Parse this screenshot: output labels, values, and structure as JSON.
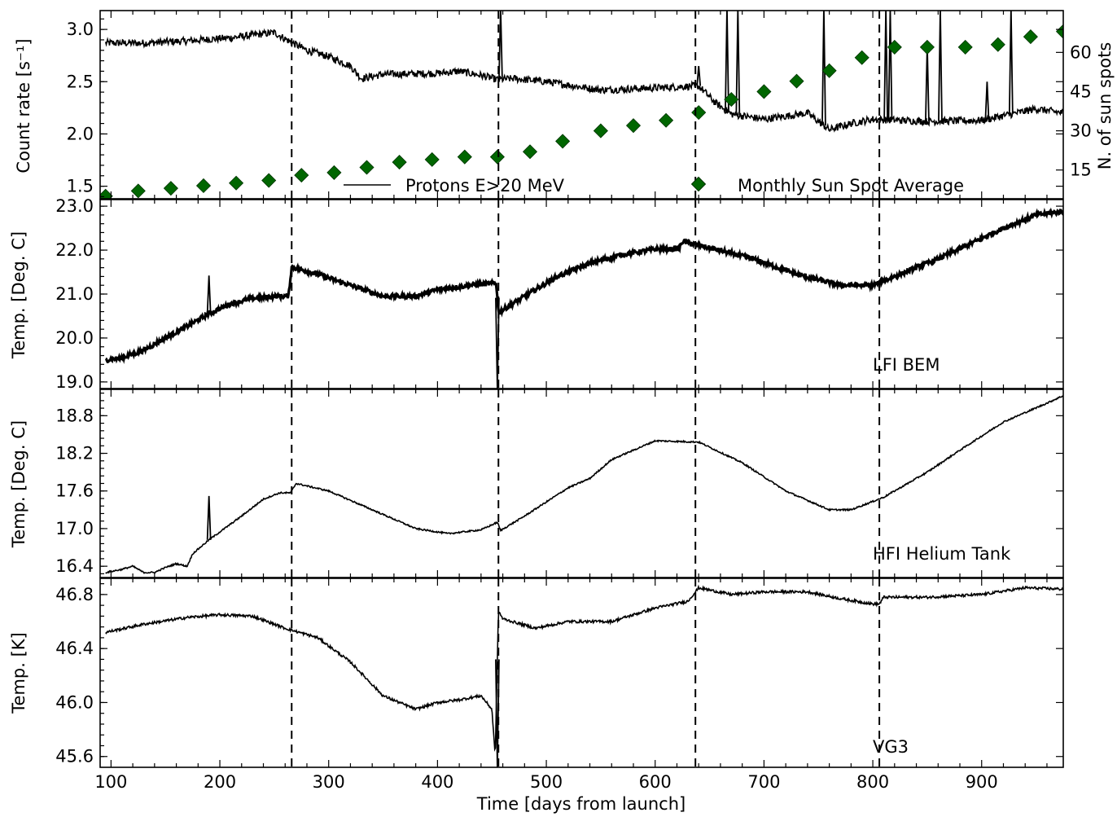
{
  "chart_data": [
    {
      "type": "line",
      "ylabel": "Count rate [s⁻¹]",
      "y2label": "N. of sun spots",
      "xlim": [
        90,
        975
      ],
      "ylim": [
        1.38,
        3.18
      ],
      "y2lim": [
        4,
        76
      ],
      "yticks": [
        "1.5",
        "2.0",
        "2.5",
        "3.0"
      ],
      "y2ticks": [
        "15",
        "30",
        "45",
        "60"
      ],
      "legend": {
        "position": "bottom",
        "entries": [
          "Protons E>20 MeV",
          "Monthly Sun Spot Average"
        ]
      },
      "series": [
        {
          "name": "Protons E>20 MeV",
          "style": "line",
          "noise": 0.035,
          "x": [
            95,
            130,
            170,
            210,
            250,
            265,
            280,
            300,
            320,
            330,
            350,
            400,
            420,
            440,
            455,
            470,
            500,
            550,
            600,
            640,
            655,
            670,
            700,
            740,
            760,
            780,
            800,
            850,
            900,
            950,
            975
          ],
          "y": [
            2.87,
            2.87,
            2.89,
            2.92,
            2.97,
            2.88,
            2.8,
            2.74,
            2.65,
            2.53,
            2.57,
            2.58,
            2.6,
            2.56,
            2.52,
            2.53,
            2.5,
            2.42,
            2.44,
            2.46,
            2.3,
            2.19,
            2.14,
            2.2,
            2.04,
            2.1,
            2.14,
            2.12,
            2.13,
            2.24,
            2.2
          ],
          "spikes": [
            [
              458,
              3.2
            ],
            [
              640,
              2.65
            ],
            [
              666,
              3.2
            ],
            [
              676,
              3.2
            ],
            [
              755,
              3.2
            ],
            [
              812,
              3.2
            ],
            [
              816,
              3.2
            ],
            [
              850,
              2.85
            ],
            [
              862,
              3.2
            ],
            [
              905,
              2.5
            ],
            [
              927,
              3.2
            ]
          ]
        },
        {
          "name": "Monthly Sun Spot Average",
          "style": "marker",
          "axis": "right",
          "color": "#006600",
          "x": [
            95,
            125,
            155,
            185,
            215,
            245,
            275,
            305,
            335,
            365,
            395,
            425,
            455,
            485,
            515,
            550,
            580,
            610,
            640,
            670,
            700,
            730,
            760,
            790,
            820,
            850,
            885,
            915,
            945,
            975
          ],
          "y": [
            5,
            7,
            8,
            9,
            10,
            11,
            13,
            14,
            16,
            18,
            19,
            20,
            20,
            22,
            26,
            30,
            32,
            34,
            37,
            42,
            45,
            49,
            53,
            58,
            62,
            62,
            62,
            63,
            66,
            68
          ]
        }
      ]
    },
    {
      "type": "line",
      "ylabel": "Temp. [Deg. C]",
      "annotation": "LFI BEM",
      "xlim": [
        90,
        975
      ],
      "ylim": [
        18.85,
        23.15
      ],
      "yticks": [
        "19.0",
        "20.0",
        "21.0",
        "22.0",
        "23.0"
      ],
      "series": [
        {
          "name": "LFI BEM",
          "style": "line",
          "noise": 0.05,
          "x": [
            95,
            110,
            130,
            150,
            170,
            190,
            210,
            230,
            250,
            263,
            266,
            290,
            320,
            350,
            380,
            400,
            430,
            454,
            456,
            480,
            510,
            540,
            570,
            600,
            622,
            625,
            650,
            690,
            730,
            770,
            800,
            830,
            860,
            890,
            920,
            950,
            975
          ],
          "y": [
            19.5,
            19.55,
            19.72,
            20.0,
            20.27,
            20.55,
            20.78,
            20.9,
            20.95,
            20.95,
            21.62,
            21.45,
            21.2,
            20.95,
            20.95,
            21.1,
            21.2,
            21.25,
            20.58,
            20.95,
            21.4,
            21.7,
            21.9,
            22.02,
            22.03,
            22.2,
            22.05,
            21.8,
            21.45,
            21.2,
            21.2,
            21.5,
            21.8,
            22.15,
            22.5,
            22.8,
            22.88
          ],
          "spikes": [
            [
              190,
              21.42
            ],
            [
              455,
              18.85
            ]
          ]
        }
      ]
    },
    {
      "type": "line",
      "ylabel": "Temp. [Deg. C]",
      "annotation": "HFI Helium Tank",
      "xlim": [
        90,
        975
      ],
      "ylim": [
        16.22,
        19.22
      ],
      "yticks": [
        "16.4",
        "17.0",
        "17.6",
        "18.2",
        "18.8"
      ],
      "series": [
        {
          "name": "HFI Helium Tank",
          "style": "line",
          "noise": 0.012,
          "x": [
            95,
            110,
            120,
            130,
            140,
            150,
            160,
            170,
            175,
            190,
            220,
            240,
            255,
            265,
            270,
            300,
            340,
            380,
            410,
            440,
            455,
            458,
            480,
            520,
            540,
            560,
            600,
            640,
            680,
            720,
            760,
            780,
            810,
            850,
            880,
            920,
            960,
            975
          ],
          "y": [
            16.3,
            16.35,
            16.4,
            16.3,
            16.3,
            16.38,
            16.44,
            16.4,
            16.6,
            16.82,
            17.2,
            17.47,
            17.57,
            17.57,
            17.72,
            17.6,
            17.3,
            17.0,
            16.92,
            16.98,
            17.1,
            16.97,
            17.2,
            17.65,
            17.8,
            18.1,
            18.4,
            18.38,
            18.05,
            17.6,
            17.3,
            17.3,
            17.5,
            17.9,
            18.25,
            18.7,
            19.0,
            19.12
          ],
          "spikes": [
            [
              190,
              17.52
            ]
          ]
        }
      ]
    },
    {
      "type": "line",
      "ylabel": "Temp. [K]",
      "annotation": "VG3",
      "xlim": [
        90,
        975
      ],
      "ylim": [
        45.52,
        46.92
      ],
      "yticks": [
        "45.6",
        "46.0",
        "46.4",
        "46.8"
      ],
      "series": [
        {
          "name": "VG3",
          "style": "line",
          "noise": 0.01,
          "x": [
            95,
            130,
            170,
            200,
            230,
            260,
            290,
            320,
            350,
            380,
            400,
            420,
            440,
            450,
            453,
            456,
            460,
            490,
            520,
            560,
            600,
            630,
            640,
            670,
            700,
            740,
            770,
            800,
            806,
            810,
            850,
            900,
            940,
            975
          ],
          "y": [
            46.52,
            46.58,
            46.63,
            46.65,
            46.64,
            46.55,
            46.48,
            46.3,
            46.05,
            45.95,
            46.0,
            46.02,
            46.05,
            45.95,
            45.6,
            46.68,
            46.62,
            46.55,
            46.6,
            46.6,
            46.7,
            46.75,
            46.85,
            46.8,
            46.82,
            46.82,
            46.77,
            46.73,
            46.73,
            46.78,
            46.78,
            46.8,
            46.85,
            46.84
          ],
          "spikes": [
            [
              455,
              45.52
            ]
          ]
        }
      ]
    }
  ],
  "xlabel": "Time [days from launch]",
  "xlim": [
    90,
    975
  ],
  "xticks": [
    "100",
    "200",
    "300",
    "400",
    "500",
    "600",
    "700",
    "800",
    "900"
  ],
  "vlines_x": [
    266,
    456,
    637,
    806
  ]
}
